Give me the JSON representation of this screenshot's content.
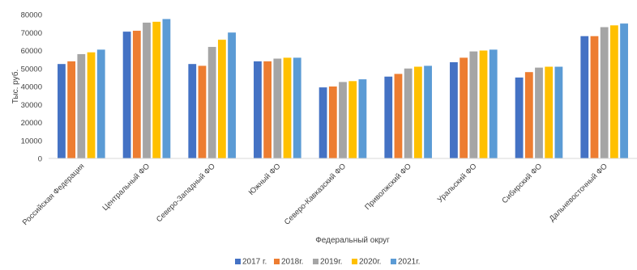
{
  "chart_data": {
    "type": "bar",
    "title": "",
    "xlabel": "Федеральный округ",
    "ylabel": "Тыс. руб.",
    "ylim": [
      0,
      80000
    ],
    "yticks": [
      "0",
      "10000",
      "20000",
      "30000",
      "40000",
      "50000",
      "60000",
      "70000",
      "80000"
    ],
    "grid": false,
    "legend_position": "bottom",
    "categories": [
      "Российская Федерация",
      "Центральный ФО",
      "Северо-Западный ФО",
      "Южный ФО",
      "Северо-Кавказский ФО",
      "Приволжский ФО",
      "Уральский ФО",
      "Сибирский ФО",
      "Дальневосточный ФО"
    ],
    "series": [
      {
        "name": "2017 г.",
        "color": "#4472C4",
        "values": [
          52500,
          70500,
          52500,
          54000,
          39500,
          45500,
          53500,
          45000,
          68000
        ]
      },
      {
        "name": "2018г.",
        "color": "#ED7D31",
        "values": [
          54000,
          71000,
          51500,
          54000,
          40000,
          47000,
          56000,
          48000,
          68000
        ]
      },
      {
        "name": "2019г.",
        "color": "#A5A5A5",
        "values": [
          58000,
          75500,
          62000,
          55500,
          42500,
          50000,
          59500,
          50500,
          73000
        ]
      },
      {
        "name": "2020г.",
        "color": "#FFC000",
        "values": [
          59000,
          76000,
          66000,
          56000,
          43000,
          51000,
          60000,
          51000,
          74000
        ]
      },
      {
        "name": "2021г.",
        "color": "#5B9BD5",
        "values": [
          60500,
          77500,
          70000,
          56000,
          44000,
          51500,
          60500,
          51000,
          75000
        ]
      }
    ]
  }
}
